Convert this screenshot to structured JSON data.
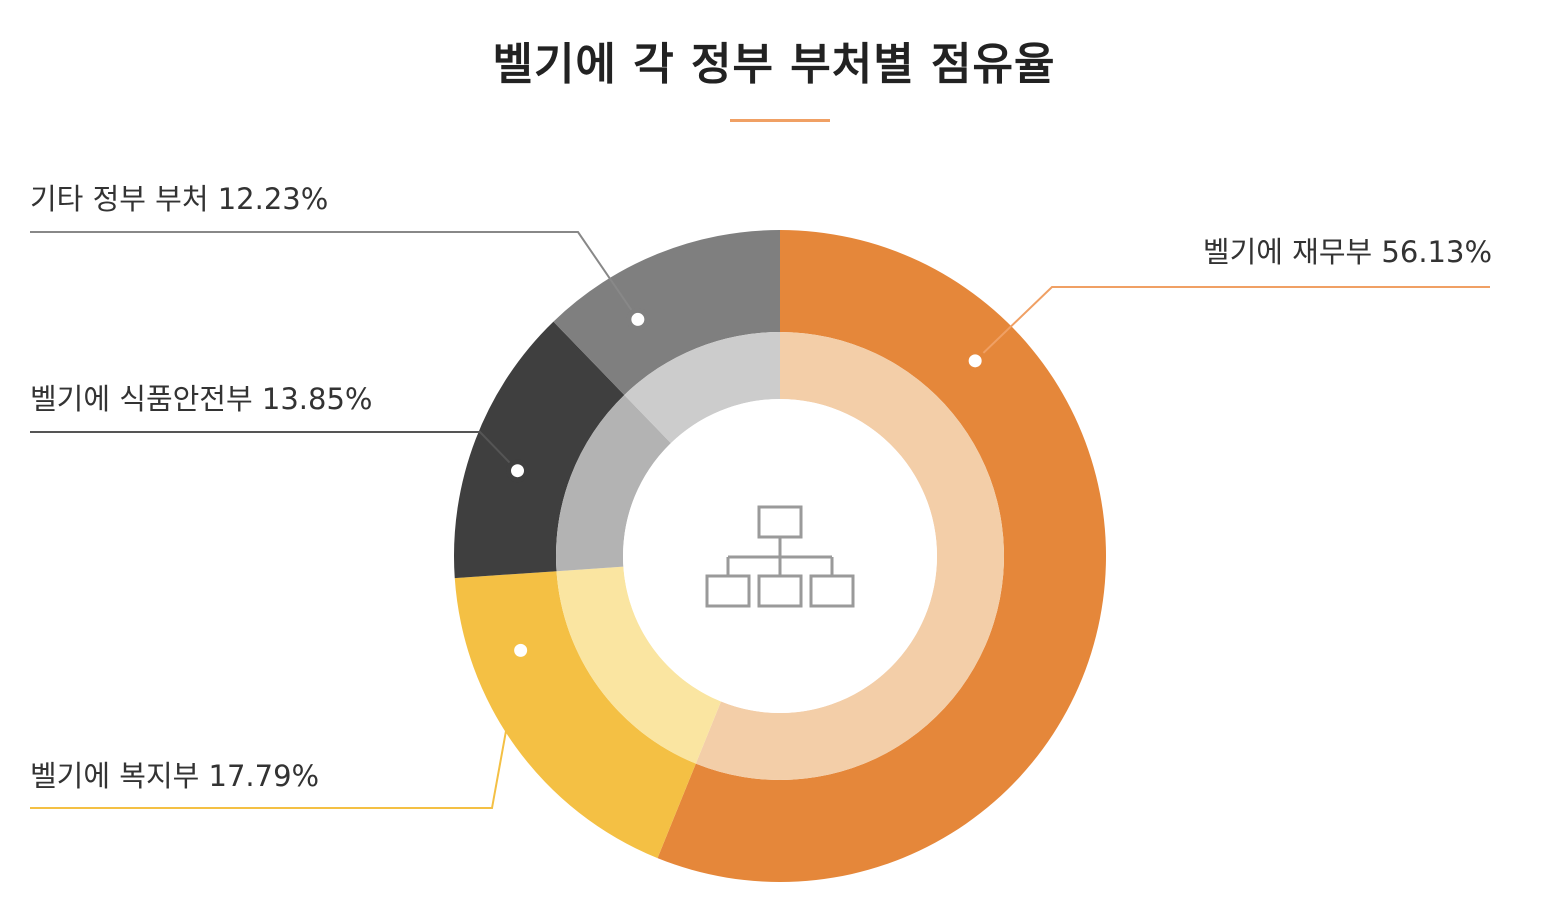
{
  "title": "벨기에 각 정부 부처별 점유율",
  "colors": {
    "title_rule": "#f0a064",
    "center_icon": "#9a9a9a"
  },
  "center_icon": "org-chart-icon",
  "chart_data": {
    "type": "pie",
    "variant": "donut",
    "title": "벨기에 각 정부 부처별 점유율",
    "slices": [
      {
        "name": "벨기에 재무부",
        "value": 56.13,
        "label": "벨기에 재무부 56.13%",
        "color": "#e5873a",
        "inner_color": "#f3cea8"
      },
      {
        "name": "벨기에 복지부",
        "value": 17.79,
        "label": "벨기에 복지부 17.79%",
        "color": "#f4c044",
        "inner_color": "#fae5a1"
      },
      {
        "name": "벨기에 식품안전부",
        "value": 13.85,
        "label": "벨기에 식품안전부 13.85%",
        "color": "#3f3f3f",
        "inner_color": "#b3b3b3"
      },
      {
        "name": "기타 정부 부처",
        "value": 12.23,
        "label": "기타 정부 부처 12.23%",
        "color": "#7f7f7f",
        "inner_color": "#cccccc"
      }
    ],
    "legend": "callout-labels"
  }
}
